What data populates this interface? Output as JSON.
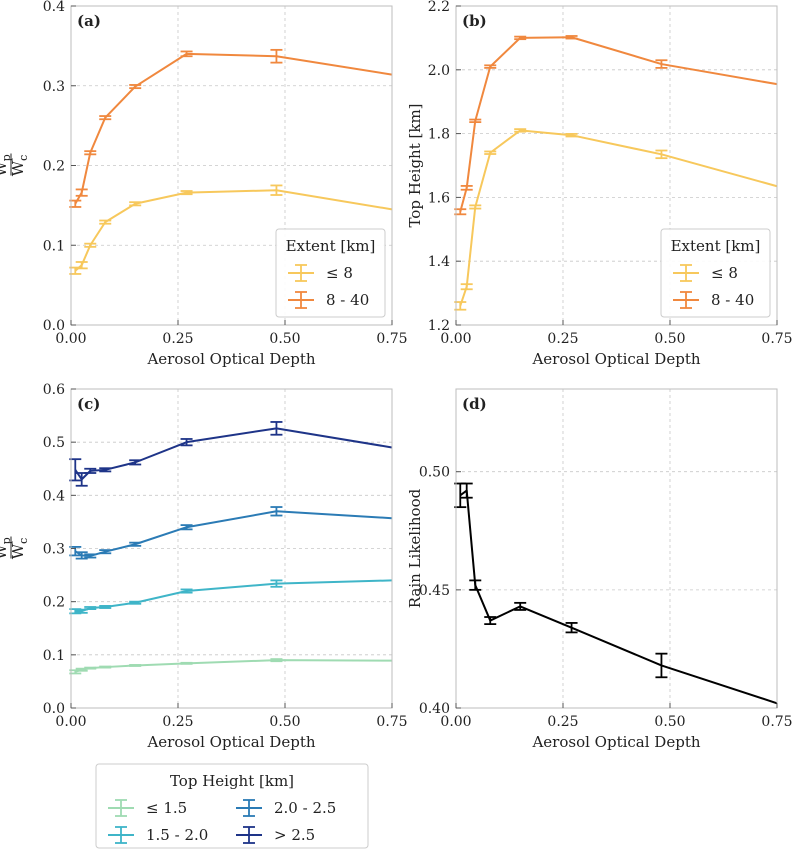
{
  "chart_data": [
    {
      "type": "line",
      "panel_label": "(a)",
      "xlabel": "Aerosol Optical Depth",
      "ylabel": "Wp/Wc",
      "ylabel_num": "W",
      "ylabel_num_sub": "p",
      "ylabel_den": "W",
      "ylabel_den_sub": "c",
      "xlim": [
        0,
        0.75
      ],
      "ylim": [
        0,
        0.4
      ],
      "xticks": [
        0,
        0.25,
        0.5,
        0.75
      ],
      "xtick_labels": [
        "0.00",
        "0.25",
        "0.50",
        "0.75"
      ],
      "yticks": [
        0,
        0.1,
        0.2,
        0.3,
        0.4
      ],
      "ytick_labels": [
        "0.0",
        "0.1",
        "0.2",
        "0.3",
        "0.4"
      ],
      "grid": true,
      "legend_title": "Extent [km]",
      "legend_position": "lower-right",
      "series": [
        {
          "name": "≤ 8",
          "color": "#f7c85c",
          "x": [
            0.01,
            0.025,
            0.045,
            0.08,
            0.15,
            0.27,
            0.48,
            0.75
          ],
          "y": [
            0.068,
            0.075,
            0.1,
            0.129,
            0.152,
            0.166,
            0.169,
            0.145
          ],
          "err": [
            0.004,
            0.004,
            0.002,
            0.002,
            0.002,
            0.002,
            0.006,
            0
          ]
        },
        {
          "name": "8 - 40",
          "color": "#f0883e",
          "x": [
            0.01,
            0.025,
            0.045,
            0.08,
            0.15,
            0.27,
            0.48,
            0.75
          ],
          "y": [
            0.152,
            0.166,
            0.216,
            0.26,
            0.299,
            0.34,
            0.337,
            0.314
          ],
          "err": [
            0.004,
            0.004,
            0.002,
            0.002,
            0.002,
            0.003,
            0.008,
            0
          ]
        }
      ]
    },
    {
      "type": "line",
      "panel_label": "(b)",
      "xlabel": "Aerosol Optical Depth",
      "ylabel": "Top Height [km]",
      "xlim": [
        0,
        0.75
      ],
      "ylim": [
        1.2,
        2.2
      ],
      "xticks": [
        0,
        0.25,
        0.5,
        0.75
      ],
      "xtick_labels": [
        "0.00",
        "0.25",
        "0.50",
        "0.75"
      ],
      "yticks": [
        1.2,
        1.4,
        1.6,
        1.8,
        2.0,
        2.2
      ],
      "ytick_labels": [
        "1.2",
        "1.4",
        "1.6",
        "1.8",
        "2.0",
        "2.2"
      ],
      "grid": true,
      "legend_title": "Extent [km]",
      "legend_position": "lower-right",
      "series": [
        {
          "name": "≤ 8",
          "color": "#f7c85c",
          "x": [
            0.01,
            0.025,
            0.045,
            0.08,
            0.15,
            0.27,
            0.48,
            0.75
          ],
          "y": [
            1.26,
            1.32,
            1.57,
            1.74,
            1.81,
            1.795,
            1.735,
            1.635
          ],
          "err": [
            0.012,
            0.008,
            0.005,
            0.004,
            0.004,
            0.004,
            0.012,
            0
          ]
        },
        {
          "name": "8 - 40",
          "color": "#f0883e",
          "x": [
            0.01,
            0.025,
            0.045,
            0.08,
            0.15,
            0.27,
            0.48,
            0.75
          ],
          "y": [
            1.555,
            1.63,
            1.84,
            2.01,
            2.1,
            2.102,
            2.018,
            1.955
          ],
          "err": [
            0.008,
            0.006,
            0.004,
            0.004,
            0.004,
            0.004,
            0.012,
            0
          ]
        }
      ]
    },
    {
      "type": "line",
      "panel_label": "(c)",
      "xlabel": "Aerosol Optical Depth",
      "ylabel": "Wp/Wc",
      "ylabel_num": "W",
      "ylabel_num_sub": "p",
      "ylabel_den": "W",
      "ylabel_den_sub": "c",
      "xlim": [
        0,
        0.75
      ],
      "ylim": [
        0,
        0.6
      ],
      "xticks": [
        0,
        0.25,
        0.5,
        0.75
      ],
      "xtick_labels": [
        "0.00",
        "0.25",
        "0.50",
        "0.75"
      ],
      "yticks": [
        0,
        0.1,
        0.2,
        0.3,
        0.4,
        0.5,
        0.6
      ],
      "ytick_labels": [
        "0.0",
        "0.1",
        "0.2",
        "0.3",
        "0.4",
        "0.5",
        "0.6"
      ],
      "grid": true,
      "legend_title": "Top Height [km]",
      "legend_position": "below",
      "series": [
        {
          "name": "≤ 1.5",
          "color": "#9fdbb2",
          "x": [
            0.01,
            0.025,
            0.045,
            0.08,
            0.15,
            0.27,
            0.48,
            0.75
          ],
          "y": [
            0.068,
            0.072,
            0.075,
            0.077,
            0.08,
            0.084,
            0.09,
            0.089
          ],
          "err": [
            0.003,
            0.002,
            0.001,
            0.001,
            0.001,
            0.001,
            0.002,
            0
          ]
        },
        {
          "name": "1.5 - 2.0",
          "color": "#3fb5c8",
          "x": [
            0.01,
            0.025,
            0.045,
            0.08,
            0.15,
            0.27,
            0.48,
            0.75
          ],
          "y": [
            0.182,
            0.182,
            0.188,
            0.19,
            0.198,
            0.22,
            0.234,
            0.24
          ],
          "err": [
            0.004,
            0.003,
            0.002,
            0.002,
            0.002,
            0.003,
            0.006,
            0
          ]
        },
        {
          "name": "2.0 - 2.5",
          "color": "#2b7bb5",
          "x": [
            0.01,
            0.025,
            0.045,
            0.08,
            0.15,
            0.27,
            0.48,
            0.75
          ],
          "y": [
            0.295,
            0.287,
            0.286,
            0.294,
            0.308,
            0.34,
            0.37,
            0.357
          ],
          "err": [
            0.008,
            0.006,
            0.003,
            0.003,
            0.003,
            0.004,
            0.008,
            0
          ]
        },
        {
          "name": "> 2.5",
          "color": "#1e3488",
          "x": [
            0.01,
            0.025,
            0.045,
            0.08,
            0.15,
            0.27,
            0.48,
            0.75
          ],
          "y": [
            0.448,
            0.43,
            0.446,
            0.448,
            0.462,
            0.5,
            0.526,
            0.49
          ],
          "err": [
            0.02,
            0.012,
            0.004,
            0.003,
            0.004,
            0.006,
            0.012,
            0
          ]
        }
      ]
    },
    {
      "type": "line",
      "panel_label": "(d)",
      "xlabel": "Aerosol Optical Depth",
      "ylabel": "Rain Likelihood",
      "xlim": [
        0,
        0.75
      ],
      "ylim": [
        0.4,
        0.535
      ],
      "xticks": [
        0,
        0.25,
        0.5,
        0.75
      ],
      "xtick_labels": [
        "0.00",
        "0.25",
        "0.50",
        "0.75"
      ],
      "yticks": [
        0.4,
        0.45,
        0.5
      ],
      "ytick_labels": [
        "0.40",
        "0.45",
        "0.50"
      ],
      "grid": true,
      "series": [
        {
          "name": "",
          "color": "#000000",
          "x": [
            0.01,
            0.025,
            0.045,
            0.08,
            0.15,
            0.27,
            0.48,
            0.75
          ],
          "y": [
            0.49,
            0.492,
            0.452,
            0.437,
            0.443,
            0.434,
            0.418,
            0.402
          ],
          "err": [
            0.005,
            0.003,
            0.002,
            0.0015,
            0.0015,
            0.002,
            0.005,
            0
          ]
        }
      ]
    }
  ]
}
